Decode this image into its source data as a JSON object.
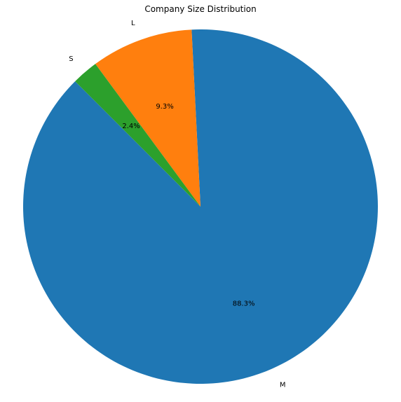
{
  "chart_data": {
    "type": "pie",
    "title": "Company Size Distribution",
    "slices": [
      {
        "label": "M",
        "percent_label": "88.3%",
        "value": 88.3,
        "color": "#1f77b4"
      },
      {
        "label": "L",
        "percent_label": "9.3%",
        "value": 9.3,
        "color": "#ff7f0e"
      },
      {
        "label": "S",
        "percent_label": "2.4%",
        "value": 2.4,
        "color": "#2ca02c"
      }
    ],
    "start_angle_deg": 135,
    "direction": "counterclockwise",
    "legend": "none"
  }
}
